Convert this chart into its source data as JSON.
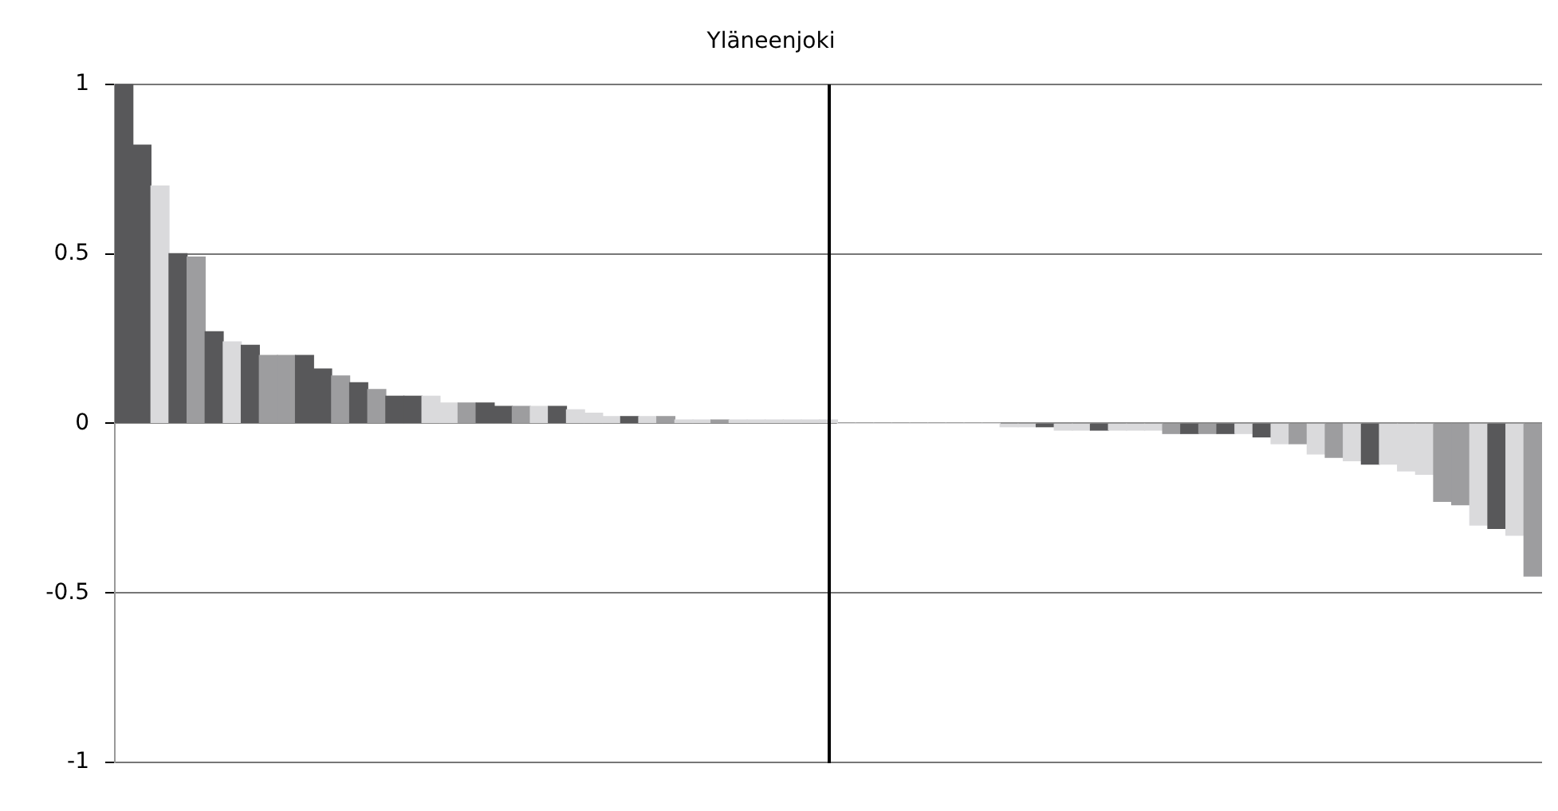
{
  "chart_data": {
    "type": "bar",
    "title": "Yläneenjoki",
    "categories": [
      null,
      null,
      null,
      null,
      null,
      null,
      null,
      null,
      null,
      null,
      null,
      null,
      null,
      null,
      null,
      null,
      null,
      null,
      null,
      null,
      null,
      null,
      null,
      null,
      null,
      null,
      null,
      null,
      null,
      null,
      null,
      null,
      null,
      null,
      null,
      null,
      null,
      null,
      null,
      null,
      null,
      null,
      null,
      null,
      null,
      null,
      null,
      null,
      null,
      null,
      null,
      null,
      null,
      null,
      null,
      null,
      null,
      null,
      null,
      null,
      null,
      null,
      null,
      null,
      null,
      null,
      null,
      null,
      null,
      null,
      null,
      null,
      null,
      null,
      null,
      null,
      null,
      null,
      null
    ],
    "values": [
      1.0,
      0.82,
      0.7,
      0.5,
      0.49,
      0.27,
      0.24,
      0.23,
      0.2,
      0.2,
      0.2,
      0.16,
      0.14,
      0.12,
      0.1,
      0.08,
      0.08,
      0.08,
      0.06,
      0.06,
      0.06,
      0.05,
      0.05,
      0.05,
      0.05,
      0.04,
      0.03,
      0.02,
      0.02,
      0.02,
      0.02,
      0.01,
      0.01,
      0.01,
      0.01,
      0.01,
      0.01,
      0.01,
      0.01,
      0.01,
      0,
      0,
      0,
      0,
      0,
      0,
      0,
      0,
      0,
      -0.01,
      -0.01,
      -0.01,
      -0.02,
      -0.02,
      -0.02,
      -0.02,
      -0.02,
      -0.02,
      -0.03,
      -0.03,
      -0.03,
      -0.03,
      -0.03,
      -0.04,
      -0.06,
      -0.06,
      -0.09,
      -0.1,
      -0.11,
      -0.12,
      -0.12,
      -0.14,
      -0.15,
      -0.23,
      -0.24,
      -0.3,
      -0.31,
      -0.33,
      -0.45
    ],
    "colors": [
      "#58585a",
      "#58585a",
      "#dadadc",
      "#58585a",
      "#9d9d9f",
      "#58585a",
      "#dadadc",
      "#58585a",
      "#9d9d9f",
      "#9d9d9f",
      "#58585a",
      "#58585a",
      "#9d9d9f",
      "#58585a",
      "#9d9d9f",
      "#58585a",
      "#58585a",
      "#dadadc",
      "#dadadc",
      "#9d9d9f",
      "#58585a",
      "#58585a",
      "#9d9d9f",
      "#dadadc",
      "#58585a",
      "#dadadc",
      "#dadadc",
      "#dadadc",
      "#58585a",
      "#dadadc",
      "#9d9d9f",
      "#dadadc",
      "#dadadc",
      "#9d9d9f",
      "#dadadc",
      "#dadadc",
      "#dadadc",
      "#dadadc",
      "#dadadc",
      "#dadadc",
      "#dadadc",
      "#dadadc",
      "#dadadc",
      "#dadadc",
      "#dadadc",
      "#dadadc",
      "#dadadc",
      "#dadadc",
      "#dadadc",
      "#dadadc",
      "#dadadc",
      "#58585a",
      "#dadadc",
      "#dadadc",
      "#58585a",
      "#dadadc",
      "#dadadc",
      "#dadadc",
      "#9d9d9f",
      "#58585a",
      "#9d9d9f",
      "#58585a",
      "#dadadc",
      "#58585a",
      "#dadadc",
      "#9d9d9f",
      "#dadadc",
      "#9d9d9f",
      "#dadadc",
      "#58585a",
      "#dadadc",
      "#dadadc",
      "#dadadc",
      "#9d9d9f",
      "#9d9d9f",
      "#dadadc",
      "#58585a",
      "#dadadc",
      "#9d9d9f"
    ],
    "ylim": [
      -1,
      1
    ],
    "yticks": [
      -1,
      {
        "value": -0.5,
        "label": "-0.5"
      },
      0,
      {
        "value": 0.5,
        "label": "0.5"
      },
      1
    ],
    "grid": "y",
    "legend": false
  }
}
